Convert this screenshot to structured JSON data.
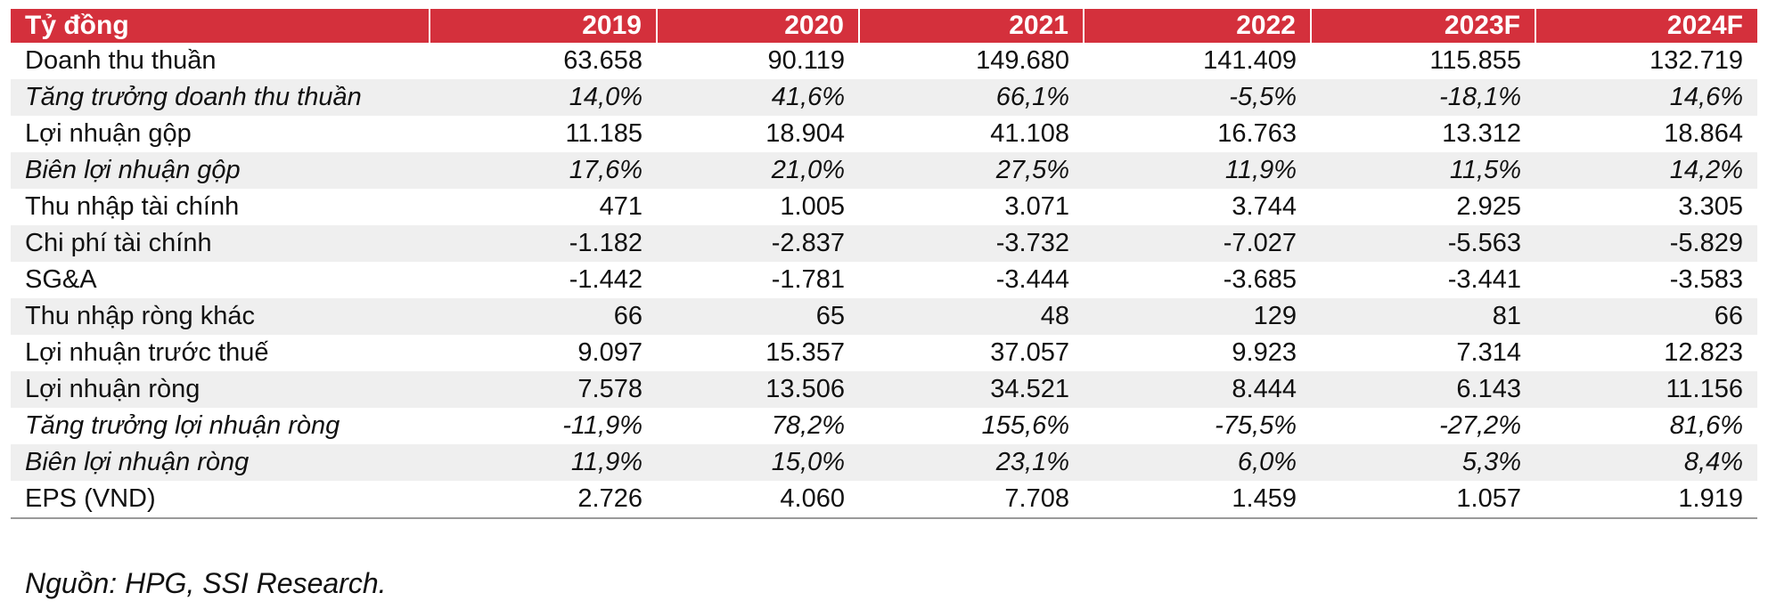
{
  "colors": {
    "header_bg": "#d4303c",
    "header_text": "#ffffff",
    "stripe": "#efefef"
  },
  "table": {
    "headers": [
      "Tỷ đồng",
      "2019",
      "2020",
      "2021",
      "2022",
      "2023F",
      "2024F"
    ],
    "rows": [
      {
        "label": "Doanh thu thuần",
        "italic": false,
        "values": [
          "63.658",
          "90.119",
          "149.680",
          "141.409",
          "115.855",
          "132.719"
        ]
      },
      {
        "label": "Tăng trưởng doanh thu thuần",
        "italic": true,
        "values": [
          "14,0%",
          "41,6%",
          "66,1%",
          "-5,5%",
          "-18,1%",
          "14,6%"
        ]
      },
      {
        "label": "Lợi nhuận gộp",
        "italic": false,
        "values": [
          "11.185",
          "18.904",
          "41.108",
          "16.763",
          "13.312",
          "18.864"
        ]
      },
      {
        "label": "Biên lợi nhuận gộp",
        "italic": true,
        "values": [
          "17,6%",
          "21,0%",
          "27,5%",
          "11,9%",
          "11,5%",
          "14,2%"
        ]
      },
      {
        "label": "Thu nhập tài chính",
        "italic": false,
        "values": [
          "471",
          "1.005",
          "3.071",
          "3.744",
          "2.925",
          "3.305"
        ]
      },
      {
        "label": "Chi phí tài chính",
        "italic": false,
        "values": [
          "-1.182",
          "-2.837",
          "-3.732",
          "-7.027",
          "-5.563",
          "-5.829"
        ]
      },
      {
        "label": "SG&A",
        "italic": false,
        "values": [
          "-1.442",
          "-1.781",
          "-3.444",
          "-3.685",
          "-3.441",
          "-3.583"
        ]
      },
      {
        "label": "Thu nhập ròng khác",
        "italic": false,
        "values": [
          "66",
          "65",
          "48",
          "129",
          "81",
          "66"
        ]
      },
      {
        "label": "Lợi nhuận trước thuế",
        "italic": false,
        "values": [
          "9.097",
          "15.357",
          "37.057",
          "9.923",
          "7.314",
          "12.823"
        ]
      },
      {
        "label": "Lợi nhuận ròng",
        "italic": false,
        "values": [
          "7.578",
          "13.506",
          "34.521",
          "8.444",
          "6.143",
          "11.156"
        ]
      },
      {
        "label": "Tăng trưởng lợi nhuận ròng",
        "italic": true,
        "values": [
          "-11,9%",
          "78,2%",
          "155,6%",
          "-75,5%",
          "-27,2%",
          "81,6%"
        ]
      },
      {
        "label": "Biên lợi nhuận ròng",
        "italic": true,
        "values": [
          "11,9%",
          "15,0%",
          "23,1%",
          "6,0%",
          "5,3%",
          "8,4%"
        ]
      },
      {
        "label": "EPS (VND)",
        "italic": false,
        "values": [
          "2.726",
          "4.060",
          "7.708",
          "1.459",
          "1.057",
          "1.919"
        ]
      }
    ]
  },
  "source_note": "Nguồn: HPG, SSI Research."
}
